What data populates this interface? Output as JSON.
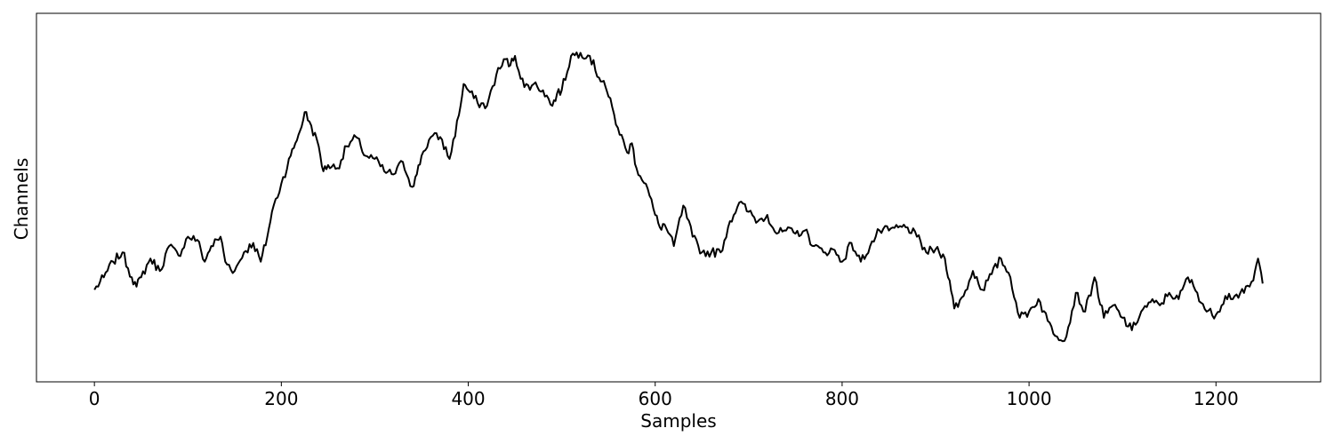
{
  "chart_data": {
    "type": "line",
    "title": "",
    "xlabel": "Samples",
    "ylabel": "Channels",
    "xlim": [
      -62,
      1312
    ],
    "ylim": [
      0,
      1
    ],
    "x_ticks": [
      0,
      200,
      400,
      600,
      800,
      1000,
      1200
    ],
    "x_tick_labels": [
      "0",
      "200",
      "400",
      "600",
      "800",
      "1000",
      "1200"
    ],
    "y_ticks_visible": false,
    "grid": false,
    "legend": "none",
    "line_color": "#000000",
    "series": [
      {
        "x": [
          0,
          10,
          20,
          30,
          40,
          45,
          50,
          60,
          70,
          80,
          90,
          100,
          110,
          118,
          125,
          135,
          140,
          150,
          160,
          170,
          178,
          185,
          190,
          200,
          210,
          215,
          220,
          225,
          230,
          240,
          245,
          250,
          260,
          270,
          280,
          285,
          290,
          300,
          310,
          320,
          330,
          340,
          345,
          350,
          360,
          370,
          380,
          390,
          395,
          400,
          410,
          420,
          430,
          440,
          445,
          450,
          460,
          470,
          480,
          490,
          495,
          500,
          510,
          520,
          530,
          540,
          545,
          550,
          560,
          570,
          575,
          580,
          590,
          600,
          605,
          610,
          620,
          630,
          640,
          650,
          660,
          670,
          680,
          690,
          700,
          710,
          720,
          730,
          740,
          750,
          760,
          770,
          780,
          790,
          800,
          810,
          820,
          830,
          840,
          850,
          860,
          870,
          880,
          890,
          900,
          910,
          915,
          920,
          930,
          940,
          950,
          960,
          970,
          980,
          990,
          1000,
          1010,
          1020,
          1030,
          1040,
          1050,
          1060,
          1070,
          1080,
          1090,
          1100,
          1110,
          1120,
          1130,
          1140,
          1150,
          1160,
          1170,
          1180,
          1190,
          1200,
          1210,
          1220,
          1230,
          1240,
          1245,
          1250
        ],
        "y": [
          0.21,
          0.25,
          0.3,
          0.33,
          0.25,
          0.22,
          0.25,
          0.31,
          0.27,
          0.35,
          0.32,
          0.38,
          0.37,
          0.3,
          0.35,
          0.38,
          0.3,
          0.27,
          0.33,
          0.36,
          0.3,
          0.38,
          0.46,
          0.55,
          0.64,
          0.68,
          0.72,
          0.78,
          0.75,
          0.67,
          0.59,
          0.61,
          0.6,
          0.67,
          0.7,
          0.67,
          0.64,
          0.63,
          0.59,
          0.58,
          0.62,
          0.54,
          0.58,
          0.64,
          0.7,
          0.7,
          0.63,
          0.77,
          0.87,
          0.85,
          0.81,
          0.8,
          0.9,
          0.95,
          0.93,
          0.96,
          0.86,
          0.87,
          0.85,
          0.8,
          0.84,
          0.85,
          0.96,
          0.97,
          0.96,
          0.89,
          0.88,
          0.83,
          0.73,
          0.65,
          0.68,
          0.6,
          0.55,
          0.45,
          0.41,
          0.42,
          0.35,
          0.48,
          0.38,
          0.33,
          0.33,
          0.33,
          0.43,
          0.49,
          0.46,
          0.43,
          0.45,
          0.39,
          0.4,
          0.39,
          0.4,
          0.35,
          0.33,
          0.34,
          0.3,
          0.36,
          0.3,
          0.35,
          0.4,
          0.4,
          0.41,
          0.41,
          0.38,
          0.33,
          0.34,
          0.31,
          0.24,
          0.15,
          0.19,
          0.27,
          0.21,
          0.26,
          0.31,
          0.25,
          0.12,
          0.14,
          0.18,
          0.11,
          0.06,
          0.06,
          0.2,
          0.14,
          0.25,
          0.12,
          0.16,
          0.12,
          0.08,
          0.14,
          0.17,
          0.16,
          0.2,
          0.18,
          0.25,
          0.2,
          0.14,
          0.13,
          0.19,
          0.19,
          0.2,
          0.24,
          0.31,
          0.23
        ],
        "x_range": [
          0,
          1250
        ]
      }
    ]
  }
}
